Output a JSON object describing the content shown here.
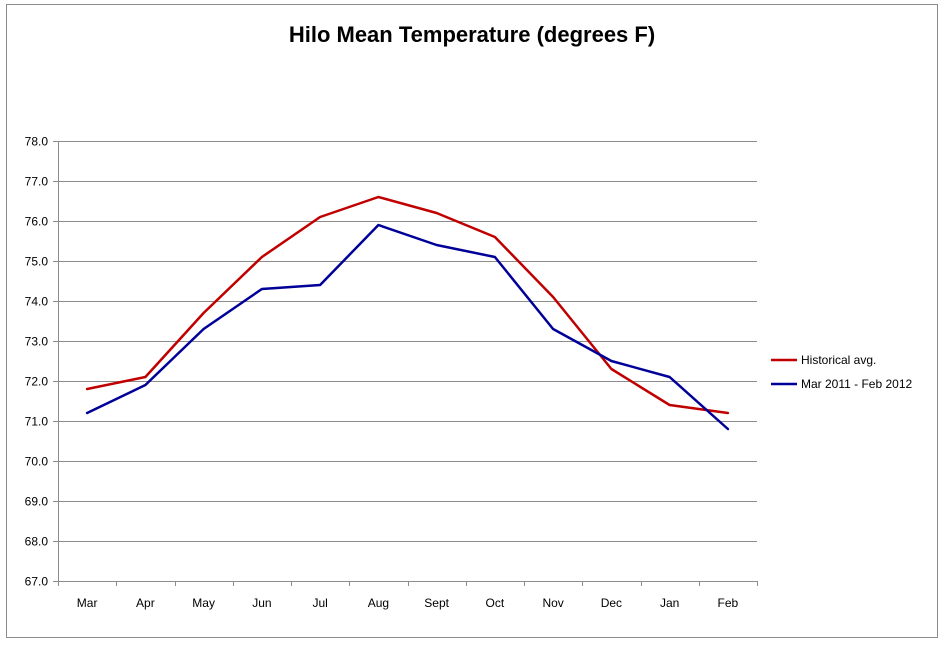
{
  "chart_data": {
    "type": "line",
    "title": "Hilo Mean Temperature (degrees F)",
    "xlabel": "",
    "ylabel": "",
    "categories": [
      "Mar",
      "Apr",
      "May",
      "Jun",
      "Jul",
      "Aug",
      "Sept",
      "Oct",
      "Nov",
      "Dec",
      "Jan",
      "Feb"
    ],
    "ylim": [
      67.0,
      78.0
    ],
    "ytick_step": 1.0,
    "yticks": [
      "67.0",
      "68.0",
      "69.0",
      "70.0",
      "71.0",
      "72.0",
      "73.0",
      "74.0",
      "75.0",
      "76.0",
      "77.0",
      "78.0"
    ],
    "grid": true,
    "legend_position": "right",
    "series": [
      {
        "name": "Historical avg.",
        "color": "#c00000",
        "values": [
          71.8,
          72.1,
          73.7,
          75.1,
          76.1,
          76.6,
          76.2,
          75.6,
          74.1,
          72.3,
          71.4,
          71.2
        ]
      },
      {
        "name": "Mar 2011 - Feb 2012",
        "color": "#000099",
        "values": [
          71.2,
          71.9,
          73.3,
          74.3,
          74.4,
          75.9,
          75.4,
          75.1,
          73.3,
          72.5,
          72.1,
          70.8
        ]
      }
    ]
  }
}
